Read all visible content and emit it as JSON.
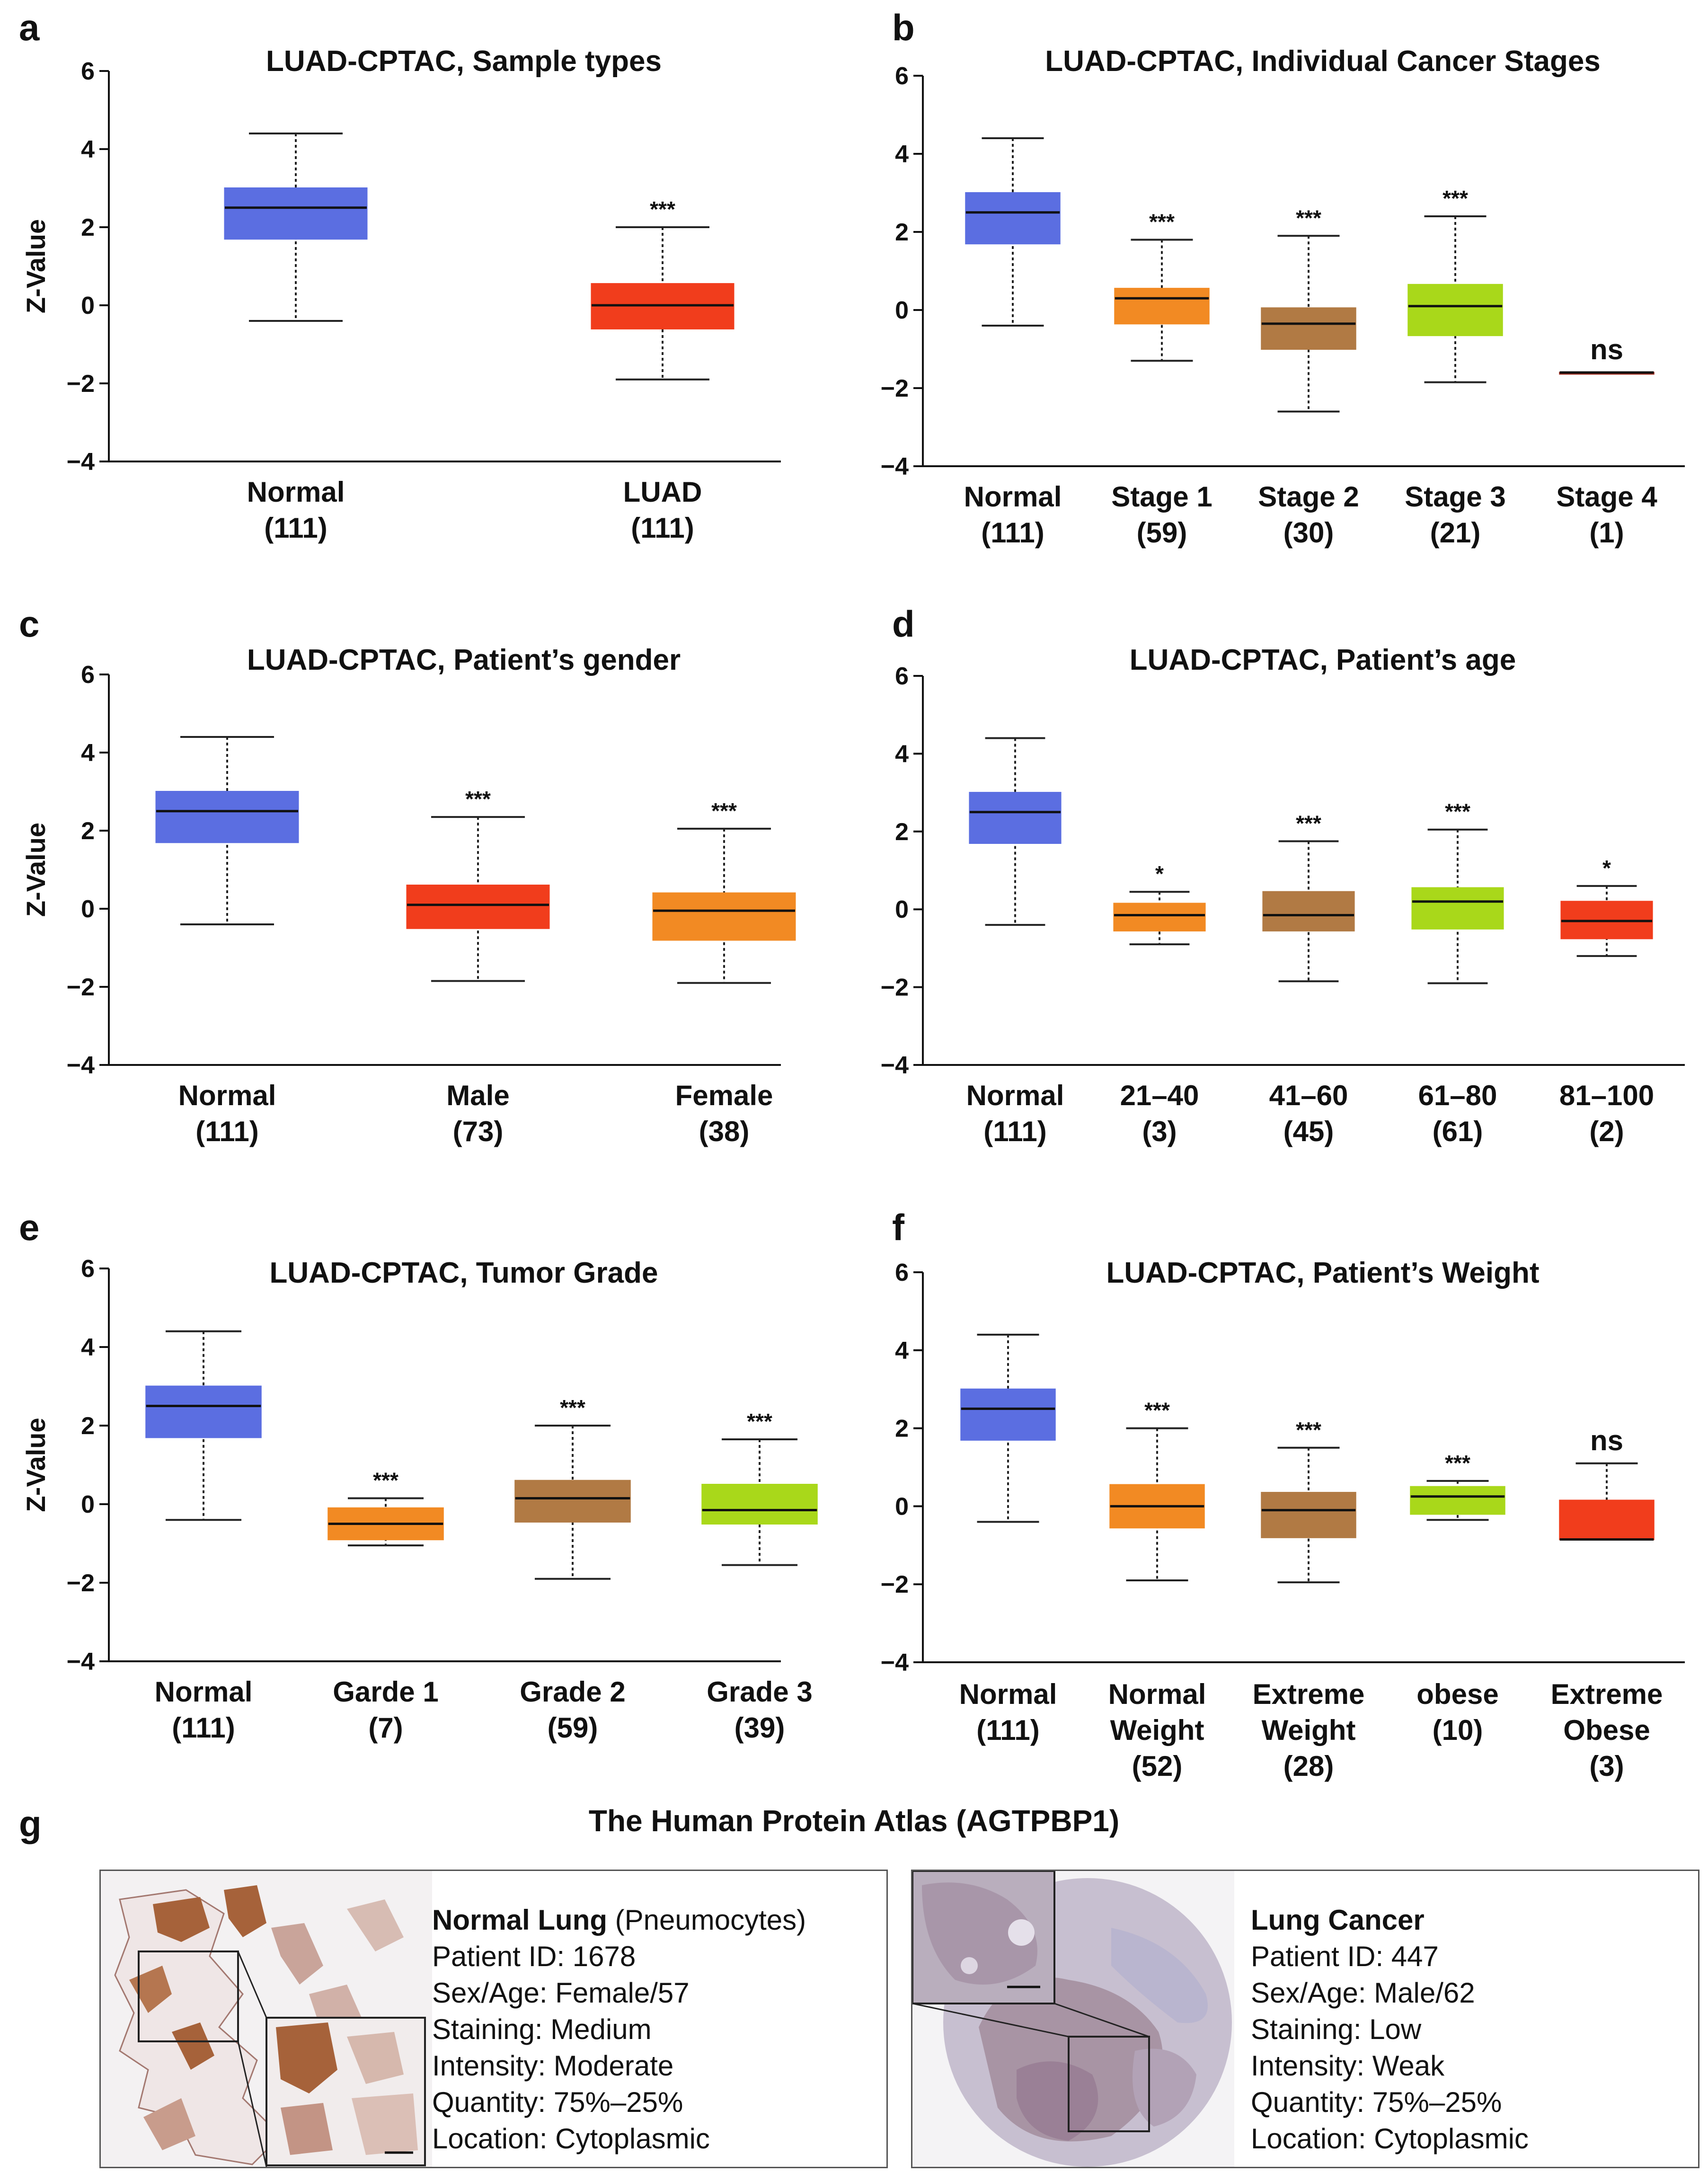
{
  "ylabel": "Z-Value",
  "colors": {
    "normal": "#5b6ee1",
    "red": "#f13d1c",
    "orange": "#f28a23",
    "brown": "#b17a44",
    "lime": "#a9d81a",
    "darkred": "#a0281a"
  },
  "chart_data": [
    {
      "letter": "a",
      "type": "box",
      "title": "LUAD-CPTAC, Sample types",
      "ylabel": "Z-Value",
      "ylim": [
        -4,
        6
      ],
      "yticks": [
        6,
        4,
        2,
        0,
        -2,
        -4
      ],
      "categories": [
        {
          "label": [
            "Normal",
            "(111)"
          ],
          "min": -0.4,
          "q1": 1.7,
          "median": 2.5,
          "q3": 3.0,
          "max": 4.4,
          "sig": "",
          "color": "#5b6ee1"
        },
        {
          "label": [
            "LUAD",
            "(111)"
          ],
          "min": -1.9,
          "q1": -0.6,
          "median": 0.0,
          "q3": 0.55,
          "max": 2.0,
          "sig": "***",
          "color": "#f13d1c"
        }
      ]
    },
    {
      "letter": "b",
      "type": "box",
      "title": "LUAD-CPTAC, Individual Cancer Stages",
      "ylabel": "",
      "ylim": [
        -4,
        6
      ],
      "yticks": [
        6,
        4,
        2,
        0,
        -2,
        -4
      ],
      "categories": [
        {
          "label": [
            "Normal",
            "(111)"
          ],
          "min": -0.4,
          "q1": 1.7,
          "median": 2.5,
          "q3": 3.0,
          "max": 4.4,
          "sig": "",
          "color": "#5b6ee1"
        },
        {
          "label": [
            "Stage 1",
            "(59)"
          ],
          "min": -1.3,
          "q1": -0.35,
          "median": 0.3,
          "q3": 0.55,
          "max": 1.8,
          "sig": "***",
          "color": "#f28a23"
        },
        {
          "label": [
            "Stage 2",
            "(30)"
          ],
          "min": -2.6,
          "q1": -1.0,
          "median": -0.35,
          "q3": 0.05,
          "max": 1.9,
          "sig": "***",
          "color": "#b17a44"
        },
        {
          "label": [
            "Stage 3",
            "(21)"
          ],
          "min": -1.85,
          "q1": -0.65,
          "median": 0.1,
          "q3": 0.65,
          "max": 2.4,
          "sig": "***",
          "color": "#a9d81a"
        },
        {
          "label": [
            "Stage 4",
            "(1)"
          ],
          "min": -1.6,
          "q1": -1.6,
          "median": -1.6,
          "q3": -1.6,
          "max": -1.6,
          "sig": "ns",
          "color": "#a0281a"
        }
      ]
    },
    {
      "letter": "c",
      "type": "box",
      "title": "LUAD-CPTAC, Patient’s gender",
      "ylabel": "Z-Value",
      "ylim": [
        -4,
        6
      ],
      "yticks": [
        6,
        4,
        2,
        0,
        -2,
        -4
      ],
      "categories": [
        {
          "label": [
            "Normal",
            "(111)"
          ],
          "min": -0.4,
          "q1": 1.7,
          "median": 2.5,
          "q3": 3.0,
          "max": 4.4,
          "sig": "",
          "color": "#5b6ee1"
        },
        {
          "label": [
            "Male",
            "(73)"
          ],
          "min": -1.85,
          "q1": -0.5,
          "median": 0.1,
          "q3": 0.6,
          "max": 2.35,
          "sig": "***",
          "color": "#f13d1c"
        },
        {
          "label": [
            "Female",
            "(38)"
          ],
          "min": -1.9,
          "q1": -0.8,
          "median": -0.05,
          "q3": 0.4,
          "max": 2.05,
          "sig": "***",
          "color": "#f28a23"
        }
      ]
    },
    {
      "letter": "d",
      "type": "box",
      "title": "LUAD-CPTAC, Patient’s age",
      "ylabel": "",
      "ylim": [
        -4,
        6
      ],
      "yticks": [
        6,
        4,
        2,
        0,
        -2,
        -4
      ],
      "categories": [
        {
          "label": [
            "Normal",
            "(111)"
          ],
          "min": -0.4,
          "q1": 1.7,
          "median": 2.5,
          "q3": 3.0,
          "max": 4.4,
          "sig": "",
          "color": "#5b6ee1"
        },
        {
          "label": [
            "21–40",
            "(3)"
          ],
          "min": -0.9,
          "q1": -0.55,
          "median": -0.15,
          "q3": 0.15,
          "max": 0.45,
          "sig": "*",
          "color": "#f28a23"
        },
        {
          "label": [
            "41–60",
            "(45)"
          ],
          "min": -1.85,
          "q1": -0.55,
          "median": -0.15,
          "q3": 0.45,
          "max": 1.75,
          "sig": "***",
          "color": "#b17a44"
        },
        {
          "label": [
            "61–80",
            "(61)"
          ],
          "min": -1.9,
          "q1": -0.5,
          "median": 0.2,
          "q3": 0.55,
          "max": 2.05,
          "sig": "***",
          "color": "#a9d81a"
        },
        {
          "label": [
            "81–100",
            "(2)"
          ],
          "min": -1.2,
          "q1": -0.75,
          "median": -0.3,
          "q3": 0.2,
          "max": 0.6,
          "sig": "*",
          "color": "#f13d1c"
        }
      ]
    },
    {
      "letter": "e",
      "type": "box",
      "title": "LUAD-CPTAC, Tumor Grade",
      "ylabel": "Z-Value",
      "ylim": [
        -4,
        6
      ],
      "yticks": [
        6,
        4,
        2,
        0,
        -2,
        -4
      ],
      "categories": [
        {
          "label": [
            "Normal",
            "(111)"
          ],
          "min": -0.4,
          "q1": 1.7,
          "median": 2.5,
          "q3": 3.0,
          "max": 4.4,
          "sig": "",
          "color": "#5b6ee1"
        },
        {
          "label": [
            "Garde 1",
            "(7)"
          ],
          "min": -1.05,
          "q1": -0.9,
          "median": -0.5,
          "q3": -0.1,
          "max": 0.15,
          "sig": "***",
          "color": "#f28a23"
        },
        {
          "label": [
            "Grade 2",
            "(59)"
          ],
          "min": -1.9,
          "q1": -0.45,
          "median": 0.15,
          "q3": 0.6,
          "max": 2.0,
          "sig": "***",
          "color": "#b17a44"
        },
        {
          "label": [
            "Grade 3",
            "(39)"
          ],
          "min": -1.55,
          "q1": -0.5,
          "median": -0.15,
          "q3": 0.5,
          "max": 1.65,
          "sig": "***",
          "color": "#a9d81a"
        }
      ]
    },
    {
      "letter": "f",
      "type": "box",
      "title": "LUAD-CPTAC, Patient’s Weight",
      "ylabel": "",
      "ylim": [
        -4,
        6
      ],
      "yticks": [
        6,
        4,
        2,
        0,
        -2,
        -4
      ],
      "categories": [
        {
          "label": [
            "Normal",
            "(111)"
          ],
          "min": -0.4,
          "q1": 1.7,
          "median": 2.5,
          "q3": 3.0,
          "max": 4.4,
          "sig": "",
          "color": "#5b6ee1"
        },
        {
          "label": [
            "Normal",
            "Weight",
            "(52)"
          ],
          "min": -1.9,
          "q1": -0.55,
          "median": 0.0,
          "q3": 0.55,
          "max": 2.0,
          "sig": "***",
          "color": "#f28a23"
        },
        {
          "label": [
            "Extreme",
            "Weight",
            "(28)"
          ],
          "min": -1.95,
          "q1": -0.8,
          "median": -0.1,
          "q3": 0.35,
          "max": 1.5,
          "sig": "***",
          "color": "#b17a44"
        },
        {
          "label": [
            "obese",
            "(10)"
          ],
          "min": -0.35,
          "q1": -0.2,
          "median": 0.25,
          "q3": 0.5,
          "max": 0.65,
          "sig": "***",
          "color": "#a9d81a"
        },
        {
          "label": [
            "Extreme",
            "Obese",
            "(3)"
          ],
          "min": -0.85,
          "q1": -0.85,
          "median": -0.85,
          "q3": 0.15,
          "max": 1.1,
          "sig": "ns",
          "color": "#f13d1c"
        }
      ]
    }
  ],
  "hpa": {
    "letter": "g",
    "title": "The Human Protein Atlas (AGTPBP1)",
    "normal": {
      "heading": "Normal Lung",
      "subheading": " (Pneumocytes)",
      "lines": [
        "Patient ID: 1678",
        "Sex/Age: Female/57",
        "Staining: Medium",
        "Intensity: Moderate",
        "Quantity: 75%–25%",
        "Location: Cytoplasmic"
      ]
    },
    "cancer": {
      "heading": "Lung Cancer",
      "lines": [
        "Patient ID: 447",
        "Sex/Age: Male/62",
        "Staining: Low",
        "Intensity: Weak",
        "Quantity: 75%–25%",
        "Location: Cytoplasmic"
      ]
    }
  }
}
